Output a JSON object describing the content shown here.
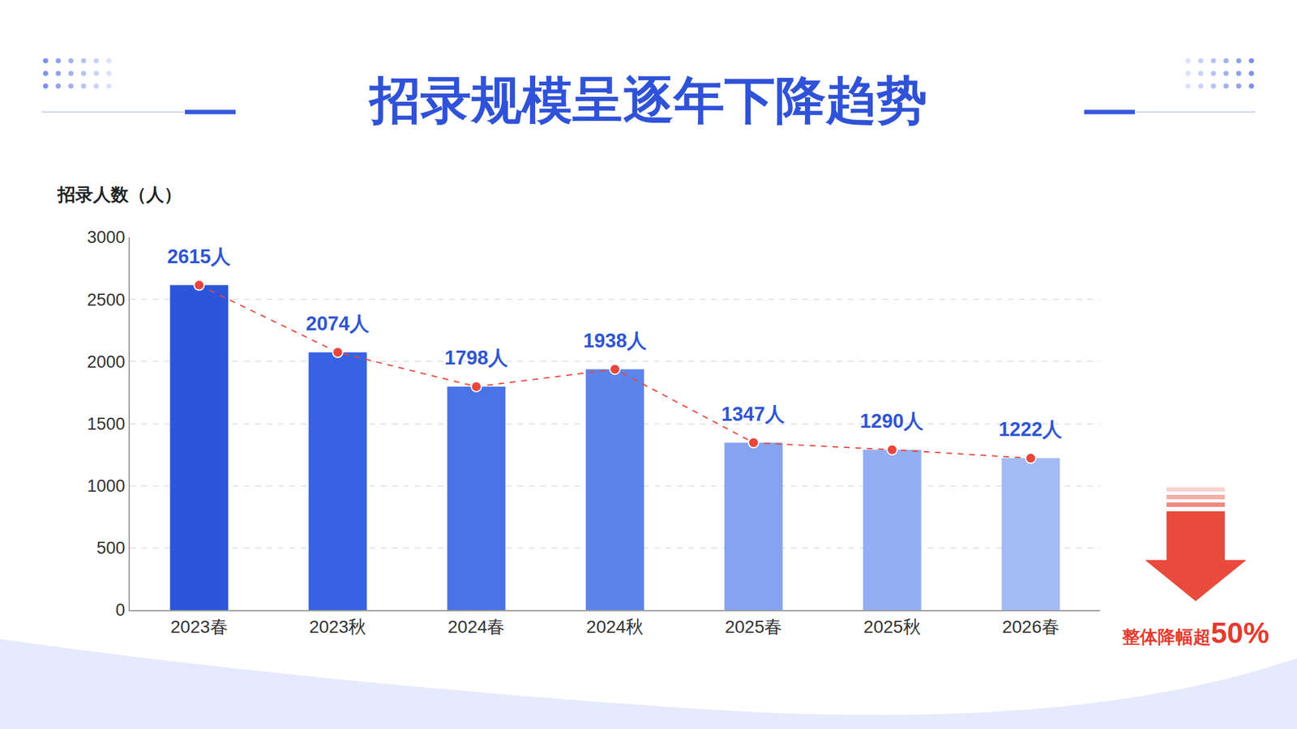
{
  "chart_data": {
    "type": "bar",
    "title": "招录规模呈逐年下降趋势",
    "y_label": "招录人数（人）",
    "categories": [
      "2023春",
      "2023秋",
      "2024春",
      "2024秋",
      "2025春",
      "2025秋",
      "2026春"
    ],
    "series": [
      {
        "type": "bar",
        "colors": [
          "#2c56da",
          "#3763e2",
          "#4a73e6",
          "#5d84ea",
          "#86a3f0",
          "#93aef2",
          "#a3bbf4"
        ],
        "values": [
          2615,
          2074,
          1798,
          1938,
          1347,
          1290,
          1222
        ],
        "value_labels": [
          "2615人",
          "2074人",
          "1798人",
          "1938人",
          "1347人",
          "1290人",
          "1222人"
        ]
      },
      {
        "type": "line",
        "color": "#e8463c",
        "line_style": "dash",
        "marker": "circle",
        "values": [
          2615,
          2074,
          1798,
          1938,
          1347,
          1290,
          1222
        ]
      }
    ],
    "ylim": [
      0,
      3000
    ],
    "yticks": [
      0,
      500,
      1000,
      1500,
      2000,
      2500,
      3000
    ],
    "grid": true,
    "data_labels": true,
    "annotations": [
      "整体降幅超50%"
    ]
  }
}
